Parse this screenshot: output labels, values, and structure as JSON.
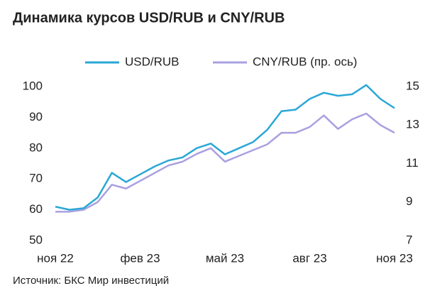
{
  "chart_data": {
    "type": "line",
    "title": "Динамика курсов USD/RUB и CNY/RUB",
    "source": "Источник: БКС Мир инвестиций",
    "x": [
      0,
      0.5,
      1,
      1.5,
      2,
      2.5,
      3,
      3.5,
      4,
      4.5,
      5,
      5.5,
      6,
      6.5,
      7,
      7.5,
      8,
      8.5,
      9,
      9.5,
      10,
      10.5,
      11,
      11.5,
      12
    ],
    "xlim": [
      0,
      12
    ],
    "xticks": [
      {
        "value": 0,
        "label": "ноя 22"
      },
      {
        "value": 3,
        "label": "фев 23"
      },
      {
        "value": 6,
        "label": "май 23"
      },
      {
        "value": 9,
        "label": "авг 23"
      },
      {
        "value": 12,
        "label": "ноя 23"
      }
    ],
    "ylim": [
      50,
      100
    ],
    "yticks": [
      50,
      60,
      70,
      80,
      90,
      100
    ],
    "y2lim": [
      7,
      15
    ],
    "y2ticks": [
      7,
      9,
      11,
      13,
      15
    ],
    "series": [
      {
        "name": "USD/RUB",
        "color": "#2aa7d6",
        "values": [
          61,
          60,
          60.5,
          64,
          72,
          69,
          71.5,
          74,
          76,
          77,
          80,
          81.5,
          78,
          80,
          82,
          86,
          92,
          92.5,
          96,
          98,
          97,
          97.5,
          100.5,
          96,
          93
        ]
      },
      {
        "name": "CNY/RUB (пр. ось)",
        "color": "#a9a0e0",
        "axis": "y2",
        "values": [
          8.5,
          8.5,
          8.6,
          9.0,
          9.9,
          9.7,
          10.1,
          10.5,
          10.9,
          11.1,
          11.5,
          11.8,
          11.1,
          11.4,
          11.7,
          12.0,
          12.6,
          12.6,
          12.9,
          13.5,
          12.8,
          13.3,
          13.6,
          13.0,
          12.6
        ]
      }
    ]
  }
}
